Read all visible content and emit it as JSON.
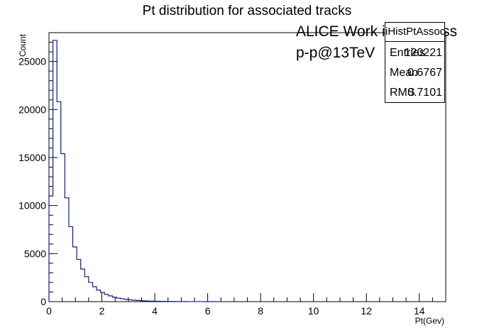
{
  "chart_data": {
    "type": "bar",
    "style": "histogram-step",
    "title": "Pt distribution for associated tracks",
    "xlabel": "Pt(Gev)",
    "ylabel": "Count",
    "xlim": [
      0,
      15
    ],
    "ylim": [
      0,
      28000
    ],
    "x_ticks": [
      0,
      2,
      4,
      6,
      8,
      10,
      12,
      14
    ],
    "y_ticks": [
      0,
      5000,
      10000,
      15000,
      20000,
      25000
    ],
    "bin_width": 0.15,
    "bin_start": 0.0,
    "values": [
      11000,
      27200,
      20800,
      15400,
      10800,
      7800,
      5700,
      4400,
      3400,
      2600,
      2000,
      1550,
      1200,
      950,
      750,
      600,
      470,
      370,
      300,
      240,
      190,
      150,
      120,
      95,
      75,
      60,
      50,
      40,
      32,
      25,
      20,
      16,
      13,
      10,
      8,
      6,
      5,
      4,
      3,
      2,
      2,
      1
    ],
    "line_color": "#0b1d8f",
    "grid": false
  },
  "annotations": {
    "line1": "ALICE Work in Progress",
    "line2": "p-p@13TeV"
  },
  "stats_box": {
    "header": "iHistPtAssoc_MB",
    "entries_label": "Entries",
    "entries_value": "120221",
    "mean_label": "Mean",
    "mean_value": "0.6767",
    "rms_label": "RMS",
    "rms_value": "0.7101"
  }
}
